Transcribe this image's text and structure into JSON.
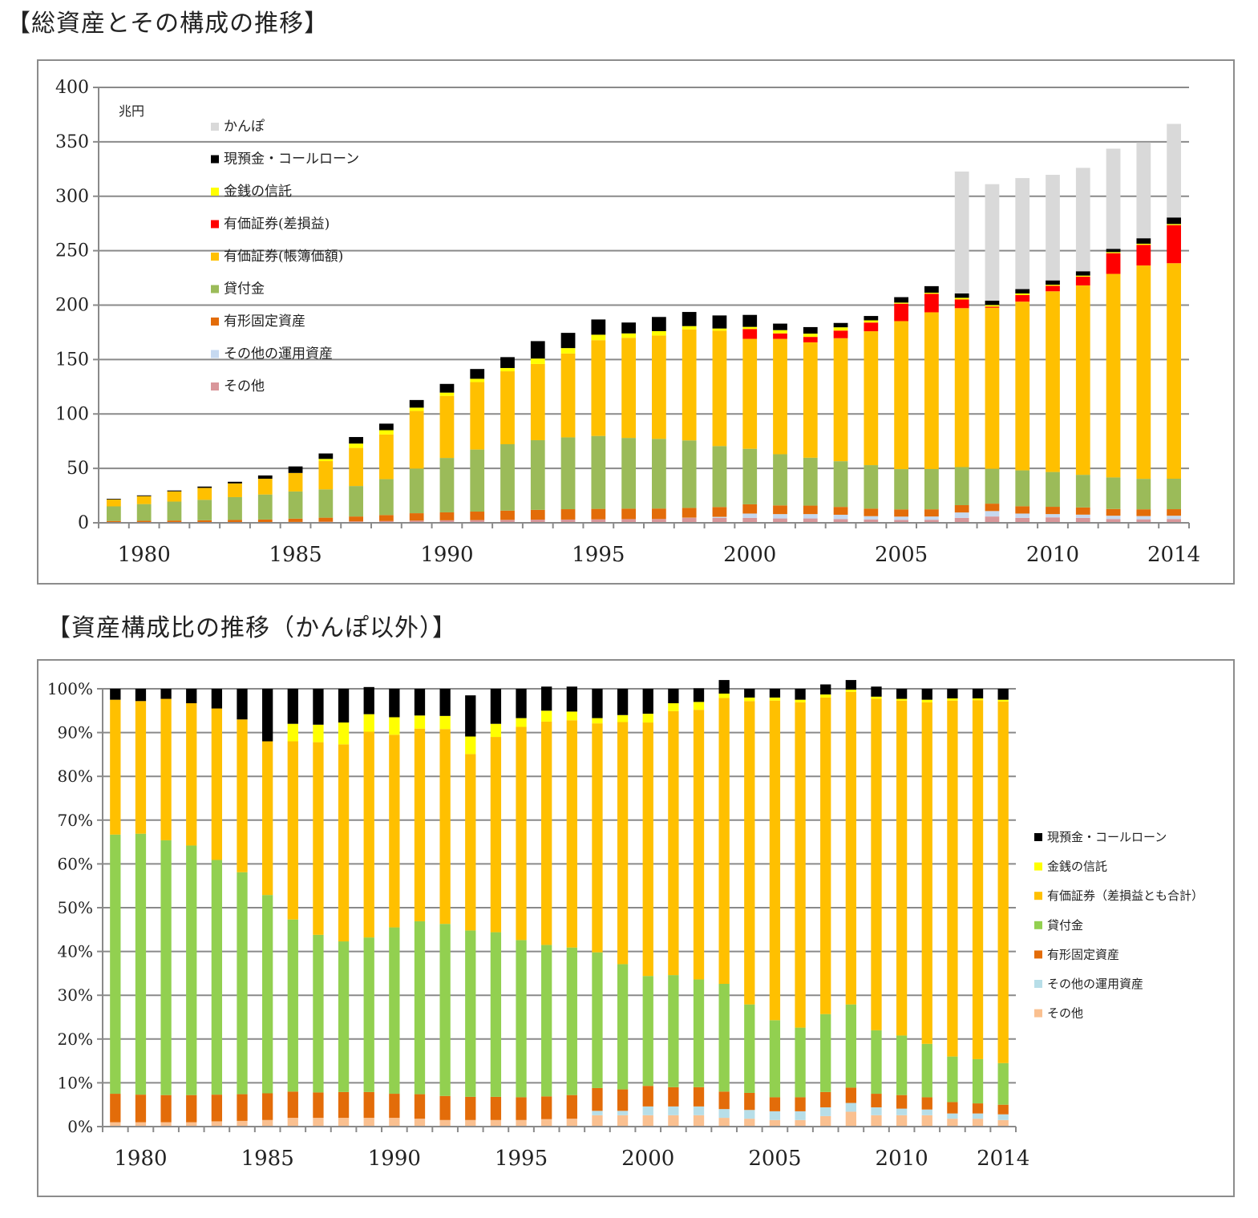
{
  "titles": {
    "chart1": "【総資産とその構成の推移】",
    "chart2": "【資産構成比の推移（かんぽ以外）】"
  },
  "chart_data": [
    {
      "id": "total-assets",
      "type": "bar",
      "stacked": true,
      "title": "【総資産とその構成の推移】",
      "unit_label": "兆円",
      "ylim": [
        0,
        400
      ],
      "yticks": [
        0,
        50,
        100,
        150,
        200,
        250,
        300,
        350,
        400
      ],
      "x": [
        1979,
        1980,
        1981,
        1982,
        1983,
        1984,
        1985,
        1986,
        1987,
        1988,
        1989,
        1990,
        1991,
        1992,
        1993,
        1994,
        1995,
        1996,
        1997,
        1998,
        1999,
        2000,
        2001,
        2002,
        2003,
        2004,
        2005,
        2006,
        2007,
        2008,
        2009,
        2010,
        2011,
        2012,
        2013,
        2014
      ],
      "xtick_labels": [
        "1980",
        "1985",
        "1990",
        "1995",
        "2000",
        "2005",
        "2010",
        "2014"
      ],
      "xtick_years": [
        1980,
        1985,
        1990,
        1995,
        2000,
        2005,
        2010,
        2014
      ],
      "legend": [
        "かんぽ",
        "現預金・コールローン",
        "金銭の信託",
        "有価証券(差損益)",
        "有価証券(帳簿価額)",
        "貸付金",
        "有形固定資産",
        "その他の運用資産",
        "その他"
      ],
      "series": [
        {
          "name": "その他",
          "color": "#d9969a",
          "values": [
            0.3,
            0.3,
            0.4,
            0.4,
            0.5,
            0.6,
            0.8,
            1,
            1.3,
            1.6,
            2,
            2.3,
            2.5,
            2.7,
            2.9,
            3,
            3.2,
            3.4,
            3.5,
            4.4,
            4.5,
            4.5,
            4,
            4,
            3.4,
            3.1,
            2.7,
            2.8,
            4.5,
            5.8,
            4.5,
            5,
            4.5,
            3.5,
            3.2,
            3.5
          ]
        },
        {
          "name": "その他の運用資産",
          "color": "#c6d9f0",
          "values": [
            0,
            0,
            0,
            0,
            0,
            0,
            0,
            0,
            0,
            0,
            0,
            0,
            0,
            0,
            0,
            0,
            0,
            0,
            0,
            0.3,
            1,
            4,
            4,
            4,
            4,
            3,
            3,
            3,
            5,
            5,
            4,
            3,
            3,
            3,
            3,
            3
          ]
        },
        {
          "name": "有形固定資産",
          "color": "#e36c09",
          "values": [
            1.4,
            1.6,
            1.7,
            1.9,
            2.1,
            2.4,
            3,
            3.7,
            4.5,
            5.5,
            6.8,
            7.3,
            7.8,
            8.5,
            9,
            9.5,
            9.6,
            9.6,
            9.6,
            9,
            9,
            8.5,
            8,
            7.8,
            7.2,
            6.9,
            6.6,
            6.6,
            6.7,
            6.8,
            6.7,
            6.7,
            6.6,
            6.2,
            6.2,
            6
          ]
        },
        {
          "name": "貸付金",
          "color": "#9bbb59",
          "values": [
            13.4,
            15.3,
            17.4,
            18.8,
            21,
            23,
            25,
            26,
            28,
            33,
            41,
            50,
            57,
            61,
            64,
            66,
            67,
            65,
            64,
            62,
            56,
            51,
            47,
            44,
            42,
            40,
            37,
            37,
            35,
            32,
            33,
            32,
            30,
            29,
            28,
            28
          ]
        },
        {
          "name": "有価証券(帳簿価額)",
          "color": "#ffc000",
          "values": [
            6.4,
            7.3,
            9.4,
            11,
            12.6,
            14.5,
            17,
            26,
            35,
            41,
            53,
            57,
            62,
            67,
            70,
            77,
            88,
            92,
            95,
            102,
            106,
            101,
            106,
            106,
            113,
            123,
            136,
            144,
            146,
            148,
            155,
            166,
            174,
            187,
            196,
            198
          ]
        },
        {
          "name": "有価証券(差損益)",
          "color": "#ff0000",
          "values": [
            0,
            0,
            0,
            0,
            0,
            0,
            0,
            0,
            0,
            0,
            0,
            0,
            0,
            0,
            0,
            0,
            0,
            0,
            0,
            0,
            0,
            9,
            5,
            5,
            7,
            8,
            16,
            17,
            8,
            1,
            6,
            5,
            8,
            19,
            19,
            35
          ]
        },
        {
          "name": "金銭の信託",
          "color": "#ffff00",
          "values": [
            0,
            0,
            0,
            0,
            0,
            0,
            0,
            2,
            4,
            4,
            3,
            3,
            3,
            3,
            5,
            5,
            5,
            4,
            4,
            3,
            2,
            2,
            3,
            3,
            3,
            2,
            1,
            1,
            1.5,
            1.5,
            1.5,
            1,
            1,
            1,
            1,
            1
          ]
        },
        {
          "name": "現預金・コールローン",
          "color": "#000000",
          "values": [
            0.6,
            0.7,
            0.8,
            1.2,
            1.5,
            3,
            6,
            5,
            6,
            6,
            7,
            8,
            9,
            10,
            16,
            14,
            14,
            10,
            13,
            13,
            12,
            11,
            6,
            6,
            4,
            4,
            5,
            6,
            4,
            4,
            4,
            4,
            4,
            3,
            5,
            6
          ]
        },
        {
          "name": "かんぽ",
          "color": "#d9d9d9",
          "values": [
            0,
            0,
            0,
            0,
            0,
            0,
            0,
            0,
            0,
            0,
            0,
            0,
            0,
            0,
            0,
            0,
            0,
            0,
            0,
            0,
            0,
            0,
            0,
            0,
            0,
            0,
            0,
            0,
            112,
            107,
            102,
            97,
            95,
            92,
            88,
            86
          ]
        }
      ]
    },
    {
      "id": "asset-composition",
      "type": "bar",
      "stacked": true,
      "percent": true,
      "title": "【資産構成比の推移（かんぽ以外）】",
      "ylim": [
        0,
        100
      ],
      "yticks": [
        0,
        10,
        20,
        30,
        40,
        50,
        60,
        70,
        80,
        90,
        100
      ],
      "ytick_labels": [
        "0%",
        "10%",
        "20%",
        "30%",
        "40%",
        "50%",
        "60%",
        "70%",
        "80%",
        "90%",
        "100%"
      ],
      "x": [
        1979,
        1980,
        1981,
        1982,
        1983,
        1984,
        1985,
        1986,
        1987,
        1988,
        1989,
        1990,
        1991,
        1992,
        1993,
        1994,
        1995,
        1996,
        1997,
        1998,
        1999,
        2000,
        2001,
        2002,
        2003,
        2004,
        2005,
        2006,
        2007,
        2008,
        2009,
        2010,
        2011,
        2012,
        2013,
        2014
      ],
      "xtick_labels": [
        "1980",
        "1985",
        "1990",
        "1995",
        "2000",
        "2005",
        "2010",
        "2014"
      ],
      "xtick_years": [
        1980,
        1985,
        1990,
        1995,
        2000,
        2005,
        2010,
        2014
      ],
      "legend": [
        "現預金・コールローン",
        "金銭の信託",
        "有価証券（差損益とも合計）",
        "貸付金",
        "有形固定資産",
        "その他の運用資産",
        "その他"
      ],
      "series": [
        {
          "name": "その他",
          "color": "#fac090",
          "values": [
            1,
            1,
            1,
            1,
            1.2,
            1.3,
            1.5,
            2,
            2,
            2,
            2,
            2,
            1.8,
            1.5,
            1.5,
            1.5,
            1.5,
            1.7,
            1.8,
            2.6,
            2.6,
            2.6,
            2.6,
            2.6,
            2,
            1.8,
            1.5,
            1.5,
            2.4,
            3.4,
            2.6,
            2.6,
            2.6,
            1.8,
            1.8,
            1.5
          ]
        },
        {
          "name": "その他の運用資産",
          "color": "#b7dee8",
          "values": [
            0,
            0,
            0,
            0,
            0,
            0,
            0,
            0,
            0,
            0,
            0,
            0,
            0,
            0,
            0,
            0,
            0,
            0,
            0,
            1,
            1,
            2,
            2,
            2,
            2,
            2,
            2,
            2,
            2,
            2,
            1.8,
            1.5,
            1.3,
            1.2,
            1.2,
            1.3
          ]
        },
        {
          "name": "有形固定資産",
          "color": "#e36c09",
          "values": [
            6.5,
            6.3,
            6.2,
            6.2,
            6.1,
            6.1,
            6.1,
            6,
            5.8,
            5.9,
            5.9,
            5.5,
            5.6,
            5.5,
            5.3,
            5.3,
            5.2,
            5.2,
            5.4,
            5.2,
            4.9,
            4.7,
            4.4,
            4.4,
            4,
            3.9,
            3.2,
            3.2,
            3.5,
            3.5,
            3.1,
            3.1,
            2.8,
            2.6,
            2.3,
            2.2
          ]
        },
        {
          "name": "貸付金",
          "color": "#92d050",
          "values": [
            59.2,
            59.6,
            58.2,
            57,
            53.6,
            50.7,
            45.3,
            39.3,
            36,
            34.4,
            35.3,
            38,
            39.5,
            39.3,
            38,
            37.6,
            35.9,
            34.6,
            33.7,
            31,
            28.6,
            25.1,
            25.6,
            24.6,
            24.6,
            20.2,
            17.6,
            15.9,
            17.8,
            19,
            14.5,
            13.6,
            12.2,
            10.4,
            10.1,
            9.5
          ]
        },
        {
          "name": "有価証券（差損益とも合計）",
          "color": "#ffc000",
          "values": [
            30.8,
            30.3,
            32.3,
            32.5,
            34.6,
            34.9,
            35.1,
            40.7,
            44,
            45,
            47,
            44,
            44,
            44.5,
            40.3,
            44.6,
            48.7,
            51,
            51.9,
            52.3,
            55.3,
            57.9,
            60.3,
            61.6,
            65.3,
            69.3,
            73,
            74.3,
            72.3,
            71.4,
            75.7,
            76.5,
            78,
            81.3,
            82,
            82.6
          ]
        },
        {
          "name": "金銭の信託",
          "color": "#ffff00",
          "values": [
            0,
            0,
            0,
            0,
            0,
            0,
            0,
            4,
            4,
            5,
            4,
            4,
            3,
            3,
            4,
            3,
            2,
            2.5,
            2,
            1.2,
            1.6,
            2,
            1.8,
            1.8,
            1,
            0.8,
            0.7,
            0.6,
            0.7,
            0.5,
            0.5,
            0.4,
            0.6,
            0.5,
            0.4,
            0.4
          ]
        },
        {
          "name": "現預金・コールローン",
          "color": "#000000",
          "values": [
            2.5,
            2.8,
            2.3,
            3.3,
            4.5,
            7,
            12,
            8,
            8.2,
            7.7,
            6.2,
            6.5,
            6.1,
            6.2,
            9.4,
            8,
            6.7,
            5.5,
            5.7,
            6.7,
            6,
            5.7,
            3.3,
            3.1,
            3.1,
            2,
            2,
            2.5,
            2.3,
            2.2,
            2.3,
            2.3,
            2.5,
            2.2,
            2.2,
            2.5
          ]
        }
      ]
    }
  ]
}
